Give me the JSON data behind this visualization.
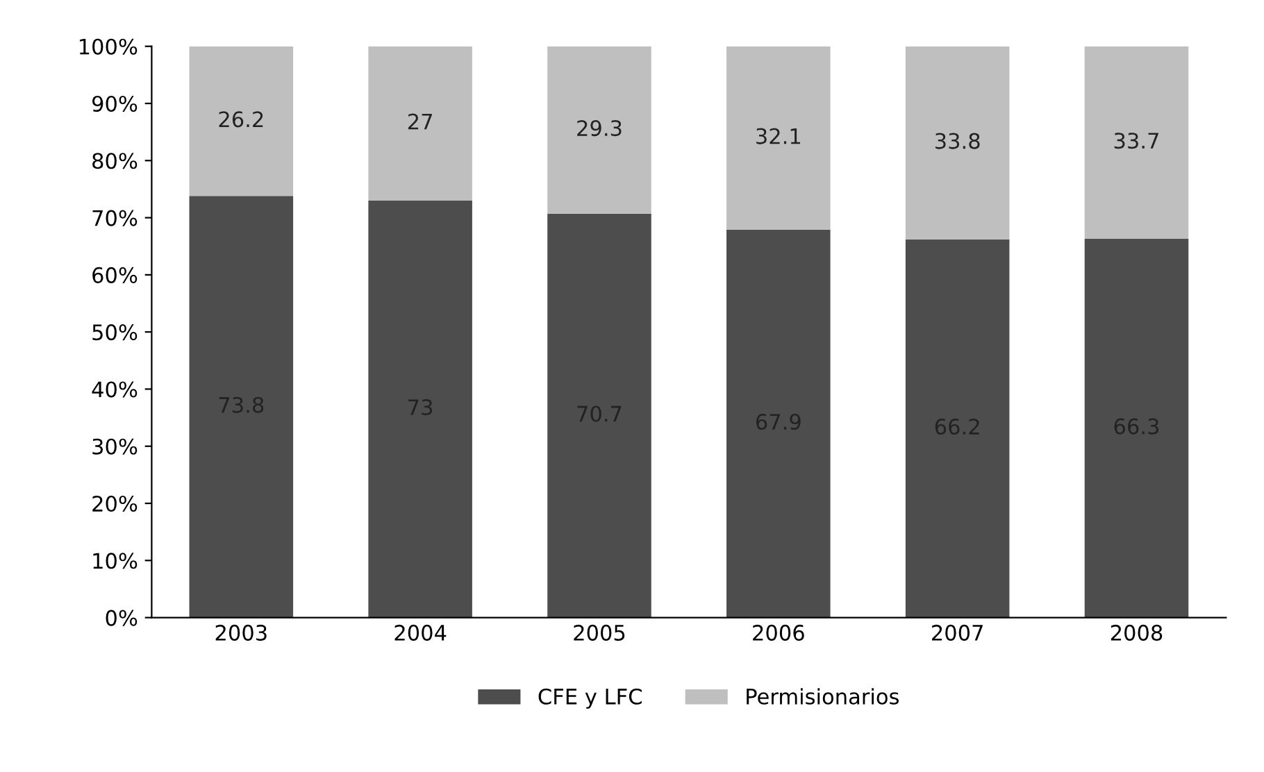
{
  "chart_data": {
    "type": "bar",
    "stacked": true,
    "categories": [
      "2003",
      "2004",
      "2005",
      "2006",
      "2007",
      "2008"
    ],
    "series": [
      {
        "name": "CFE y LFC",
        "color": "#4d4d4d",
        "values": [
          73.8,
          73,
          70.7,
          67.9,
          66.2,
          66.3
        ]
      },
      {
        "name": "Permisionarios",
        "color": "#bfbfbf",
        "values": [
          26.2,
          27,
          29.3,
          32.1,
          33.8,
          33.7
        ]
      }
    ],
    "ylim": [
      0,
      100
    ],
    "yticks": [
      {
        "value": 0,
        "label": "0%"
      },
      {
        "value": 10,
        "label": "10%"
      },
      {
        "value": 20,
        "label": "20%"
      },
      {
        "value": 30,
        "label": "30%"
      },
      {
        "value": 40,
        "label": "40%"
      },
      {
        "value": 50,
        "label": "50%"
      },
      {
        "value": 60,
        "label": "60%"
      },
      {
        "value": 70,
        "label": "70%"
      },
      {
        "value": 80,
        "label": "80%"
      },
      {
        "value": 90,
        "label": "90%"
      },
      {
        "value": 100,
        "label": "100%"
      }
    ],
    "data_labels": true,
    "legend": "bottom",
    "grid": false
  }
}
